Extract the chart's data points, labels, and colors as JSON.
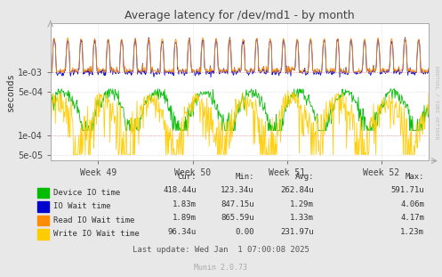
{
  "title": "Average latency for /dev/md1 - by month",
  "ylabel": "seconds",
  "xlabel_ticks": [
    "Week 49",
    "Week 50",
    "Week 51",
    "Week 52"
  ],
  "background_color": "#e8e8e8",
  "plot_background_color": "#ffffff",
  "grid_color": "#cccccc",
  "ylim_log": [
    4e-05,
    0.006
  ],
  "series_colors": [
    "#00bb00",
    "#0000cc",
    "#ff8c00",
    "#ffcc00"
  ],
  "legend_entries": [
    {
      "label": "Device IO time",
      "color": "#00bb00",
      "cur": "418.44u",
      "min": "123.34u",
      "avg": "262.84u",
      "max": "591.71u"
    },
    {
      "label": "IO Wait time",
      "color": "#0000cc",
      "cur": "1.83m",
      "min": "847.15u",
      "avg": "1.29m",
      "max": "4.06m"
    },
    {
      "label": "Read IO Wait time",
      "color": "#ff8c00",
      "cur": "1.89m",
      "min": "865.59u",
      "avg": "1.33m",
      "max": "4.17m"
    },
    {
      "label": "Write IO Wait time",
      "color": "#ffcc00",
      "cur": "96.34u",
      "min": "0.00",
      "avg": "231.97u",
      "max": "1.23m"
    }
  ],
  "footer": "Last update: Wed Jan  1 07:00:08 2025",
  "munin_version": "Munin 2.0.73",
  "rrdtool_label": "RRDTOOL / TOBI OETIKER",
  "title_color": "#444444",
  "axis_color": "#333333",
  "tick_color": "#444444",
  "spine_color": "#aaaaaa",
  "arrow_color": "#aaaaaa"
}
